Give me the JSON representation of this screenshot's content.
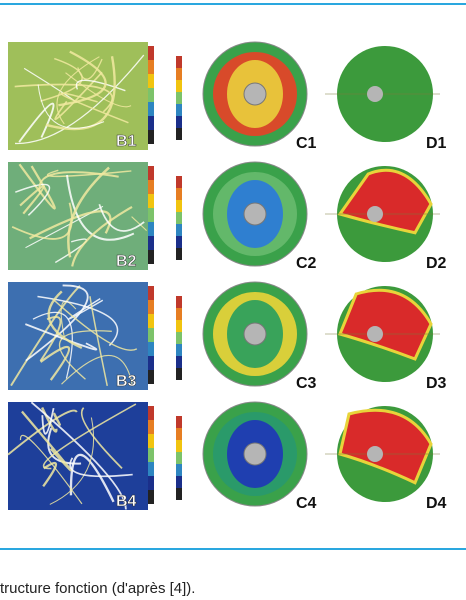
{
  "figure": {
    "rows": [
      {
        "b": "B1",
        "c": "C1",
        "d": "D1"
      },
      {
        "b": "B2",
        "c": "C2",
        "d": "D2"
      },
      {
        "b": "B3",
        "c": "C3",
        "d": "D3"
      },
      {
        "b": "B4",
        "c": "C4",
        "d": "D4"
      }
    ]
  },
  "caption": "tructure fonction (d'après [4])."
}
